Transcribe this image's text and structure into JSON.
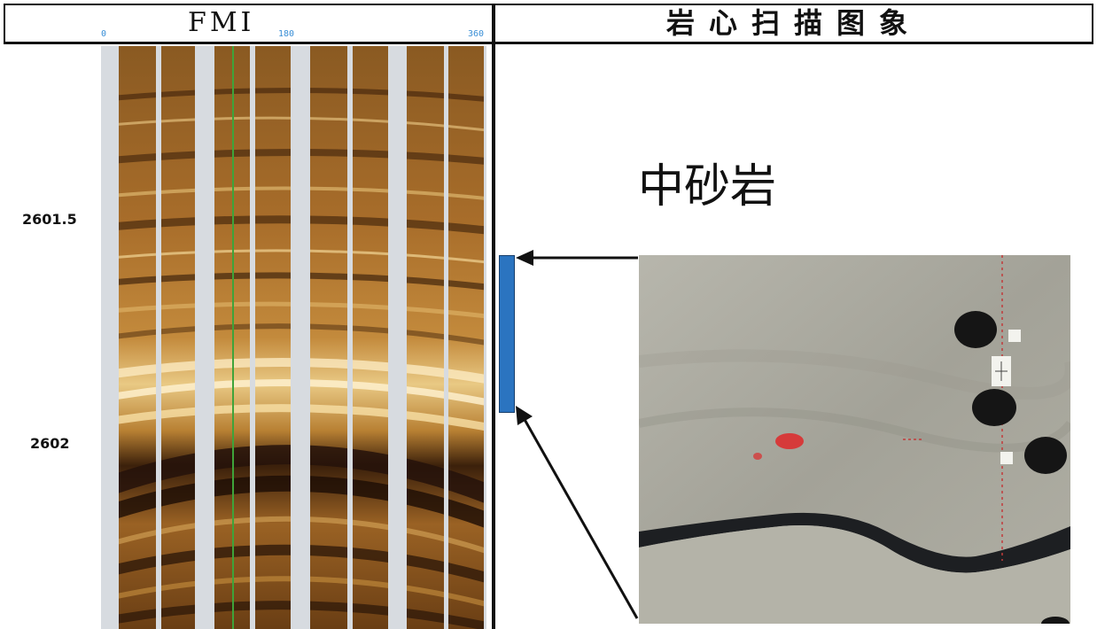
{
  "fmi_header": {
    "title": "FMI",
    "ticks": [
      "0",
      "180",
      "360"
    ]
  },
  "core_header": {
    "title": "岩心扫描图象"
  },
  "depth_labels": [
    "2601.5",
    "2602"
  ],
  "lithology": "中砂岩",
  "colors": {
    "interval_bar": "#2b74c0",
    "tick_text": "#3a8fd6",
    "fmi_dark": "#2a1608",
    "fmi_light": "#f4dfa8",
    "core_gray": "#a9a89e",
    "pad_gap": "#d7dbe0",
    "red_mark": "#d63a3a"
  },
  "icons": [
    "arrow-icon",
    "arrow-icon"
  ]
}
